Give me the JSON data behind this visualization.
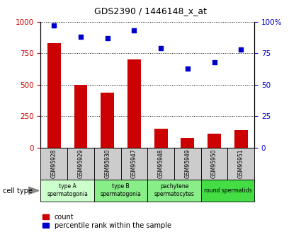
{
  "title": "GDS2390 / 1446148_x_at",
  "samples": [
    "GSM95928",
    "GSM95929",
    "GSM95930",
    "GSM95947",
    "GSM95948",
    "GSM95949",
    "GSM95950",
    "GSM95951"
  ],
  "counts": [
    830,
    500,
    440,
    700,
    150,
    75,
    110,
    140
  ],
  "percentiles": [
    97,
    88,
    87,
    93,
    79,
    63,
    68,
    78
  ],
  "ylim_left": [
    0,
    1000
  ],
  "ylim_right": [
    0,
    100
  ],
  "yticks_left": [
    0,
    250,
    500,
    750,
    1000
  ],
  "yticks_right": [
    0,
    25,
    50,
    75,
    100
  ],
  "bar_color": "#cc0000",
  "dot_color": "#0000cc",
  "cell_types": [
    {
      "label": "type A\nspermatogonia",
      "start": 0,
      "end": 2,
      "color": "#ccffcc"
    },
    {
      "label": "type B\nspermatogonia",
      "start": 2,
      "end": 4,
      "color": "#88ee88"
    },
    {
      "label": "pachytene\nspermatocytes",
      "start": 4,
      "end": 6,
      "color": "#88ee88"
    },
    {
      "label": "round spermatids",
      "start": 6,
      "end": 8,
      "color": "#44dd44"
    }
  ],
  "tick_label_color_left": "#cc0000",
  "tick_label_color_right": "#0000cc",
  "bar_width": 0.5,
  "cell_type_label": "cell type",
  "legend_count_label": "count",
  "legend_pct_label": "percentile rank within the sample",
  "sample_box_color": "#cccccc",
  "fig_bg": "#ffffff"
}
